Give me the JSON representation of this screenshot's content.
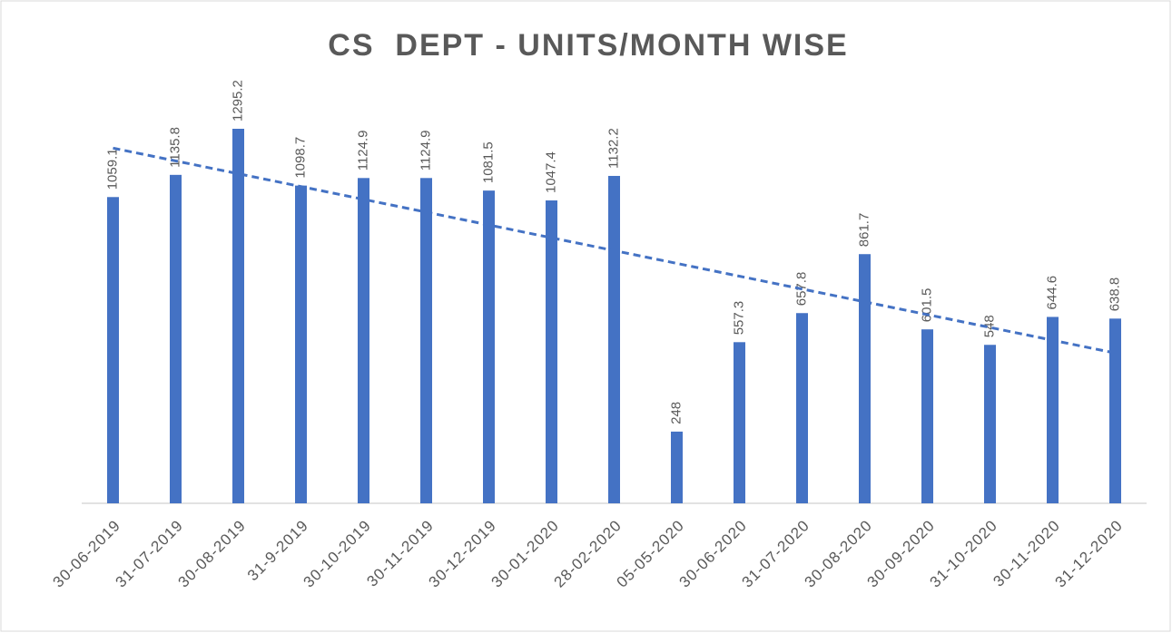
{
  "chart_data": {
    "type": "bar",
    "title": "CS  DEPT - UNITS/MONTH WISE",
    "categories": [
      "30-06-2019",
      "31-07-2019",
      "30-08-2019",
      "31-9-2019",
      "30-10-2019",
      "30-11-2019",
      "30-12-2019",
      "30-01-2020",
      "28-02-2020",
      "05-05-2020",
      "30-06-2020",
      "31-07-2020",
      "30-08-2020",
      "30-09-2020",
      "31-10-2020",
      "30-11-2020",
      "31-12-2020"
    ],
    "values": [
      1059.1,
      1135.8,
      1295.2,
      1098.7,
      1124.9,
      1124.9,
      1081.5,
      1047.4,
      1132.2,
      248,
      557.3,
      657.8,
      861.7,
      601.5,
      548,
      644.6,
      638.8
    ],
    "color": "#4472c4",
    "trendline": true
  }
}
